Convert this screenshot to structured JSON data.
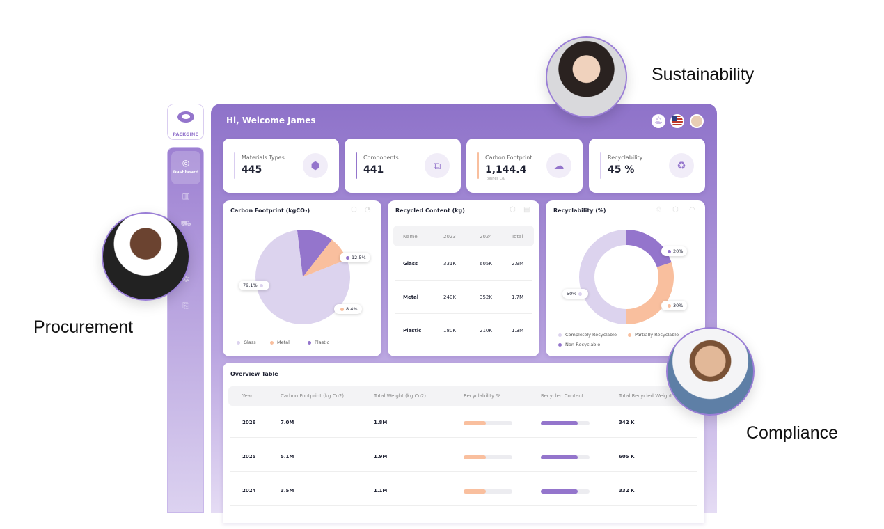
{
  "brand": "PACKGINE",
  "sidebar": {
    "active": "Dashboard"
  },
  "header": {
    "greeting": "Hi, Welcome James"
  },
  "stats": [
    {
      "label": "Materials Types",
      "value": "445",
      "icon": "cubes-icon",
      "accent": "#d9cdf0"
    },
    {
      "label": "Components",
      "value": "441",
      "icon": "puzzle-icon",
      "accent": "#9475cc"
    },
    {
      "label": "Carbon Footprint",
      "value": "1,144.4",
      "unit": "tonnes Co₂",
      "icon": "co2-cloud-icon",
      "accent": "#f9bf9e"
    },
    {
      "label": "Recyclability",
      "value": "45 %",
      "icon": "recycle-icon",
      "accent": "#d9cdf0"
    }
  ],
  "carbon": {
    "title": "Carbon Footprint (kgCO₂)",
    "legend": [
      "Glass",
      "Metal",
      "Plastic"
    ]
  },
  "recycled": {
    "title": "Recycled Content (kg)",
    "headers": [
      "Name",
      "2023",
      "2024",
      "Total"
    ],
    "rows": [
      [
        "Glass",
        "331K",
        "605K",
        "2.9M"
      ],
      [
        "Metal",
        "240K",
        "352K",
        "1.7M"
      ],
      [
        "Plastic",
        "180K",
        "210K",
        "1.3M"
      ]
    ]
  },
  "recyclability": {
    "title": "Recyclability (%)",
    "legend": [
      "Completely Recyclable",
      "Partially Recyclable",
      "Non-Recyclable"
    ]
  },
  "chart_data": [
    {
      "type": "pie",
      "title": "Carbon Footprint (kgCO₂)",
      "categories": [
        "Glass",
        "Metal",
        "Plastic"
      ],
      "values": [
        79.1,
        8.4,
        12.5
      ],
      "labels": [
        "79.1%",
        "8.4%",
        "12.5%"
      ],
      "colors": [
        "#dcd3ee",
        "#f9bf9e",
        "#9475cc"
      ]
    },
    {
      "type": "pie",
      "title": "Recyclability (%)",
      "categories": [
        "Completely Recyclable",
        "Partially Recyclable",
        "Non-Recyclable"
      ],
      "values": [
        50,
        30,
        20
      ],
      "labels": [
        "50%",
        "30%",
        "20%"
      ],
      "colors": [
        "#dcd3ee",
        "#f9bf9e",
        "#9475cc"
      ]
    }
  ],
  "overview": {
    "title": "Overview Table",
    "headers": [
      "Year",
      "Carbon Footprint (kg Co2)",
      "Total Weight (kg Co2)",
      "Recyclability %",
      "Recycled Content",
      "Total Recycled Weight"
    ],
    "rows": [
      {
        "year": "2026",
        "cf": "7.0M",
        "tw": "1.8M",
        "recyclability": 0.45,
        "recycled": 0.75,
        "trw": "342 K"
      },
      {
        "year": "2025",
        "cf": "5.1M",
        "tw": "1.9M",
        "recyclability": 0.45,
        "recycled": 0.75,
        "trw": "605 K"
      },
      {
        "year": "2024",
        "cf": "3.5M",
        "tw": "1.1M",
        "recyclability": 0.45,
        "recycled": 0.75,
        "trw": "332 K"
      }
    ]
  },
  "roles": {
    "sustainability": "Sustainability",
    "procurement": "Procurement",
    "compliance": "Compliance"
  }
}
